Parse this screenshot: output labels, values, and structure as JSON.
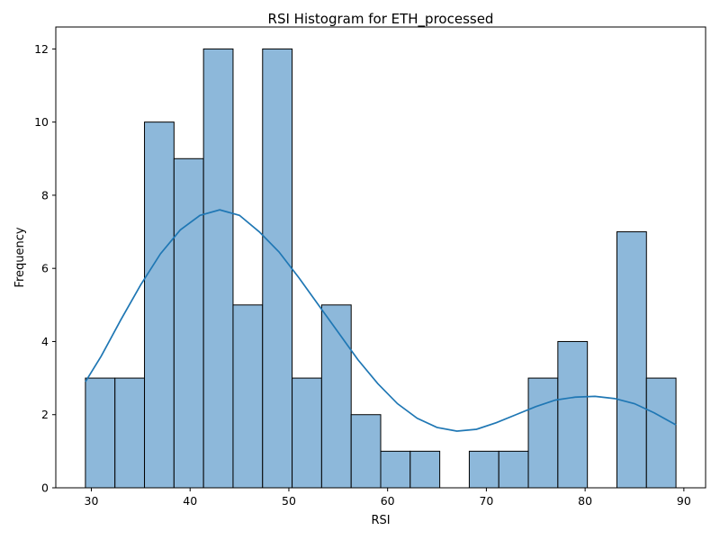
{
  "chart_data": {
    "type": "bar",
    "subtype": "histogram-with-kde",
    "title": "RSI Histogram for ETH_processed",
    "xlabel": "RSI",
    "ylabel": "Frequency",
    "xlim": [
      26.4,
      92.2
    ],
    "ylim": [
      0,
      12.6
    ],
    "xticks": [
      30,
      40,
      50,
      60,
      70,
      80,
      90
    ],
    "yticks": [
      0,
      2,
      4,
      6,
      8,
      10,
      12
    ],
    "bin_edges": [
      29.4,
      32.39,
      35.38,
      38.37,
      41.36,
      44.35,
      47.34,
      50.33,
      53.32,
      56.31,
      59.3,
      62.29,
      65.28,
      68.27,
      71.26,
      74.25,
      77.24,
      80.23,
      83.22,
      86.21,
      89.2
    ],
    "counts": [
      3,
      3,
      10,
      9,
      12,
      5,
      12,
      3,
      5,
      2,
      1,
      1,
      0,
      1,
      1,
      3,
      4,
      0,
      7,
      3
    ],
    "kde": {
      "x": [
        29.4,
        31,
        33,
        35,
        37,
        39,
        41,
        43,
        45,
        47,
        49,
        51,
        53,
        55,
        57,
        59,
        61,
        63,
        65,
        67,
        69,
        71,
        73,
        75,
        77,
        79,
        81,
        83,
        85,
        87,
        89.2
      ],
      "y": [
        2.9,
        3.6,
        4.6,
        5.55,
        6.4,
        7.05,
        7.45,
        7.6,
        7.45,
        7.0,
        6.45,
        5.75,
        5.0,
        4.25,
        3.5,
        2.85,
        2.3,
        1.9,
        1.65,
        1.55,
        1.6,
        1.78,
        2.0,
        2.22,
        2.4,
        2.48,
        2.5,
        2.44,
        2.3,
        2.05,
        1.72
      ]
    },
    "grid": false,
    "colors": {
      "bar_fill": "#8db8da",
      "bar_edge": "#000000",
      "kde_line": "#1f77b4"
    }
  }
}
